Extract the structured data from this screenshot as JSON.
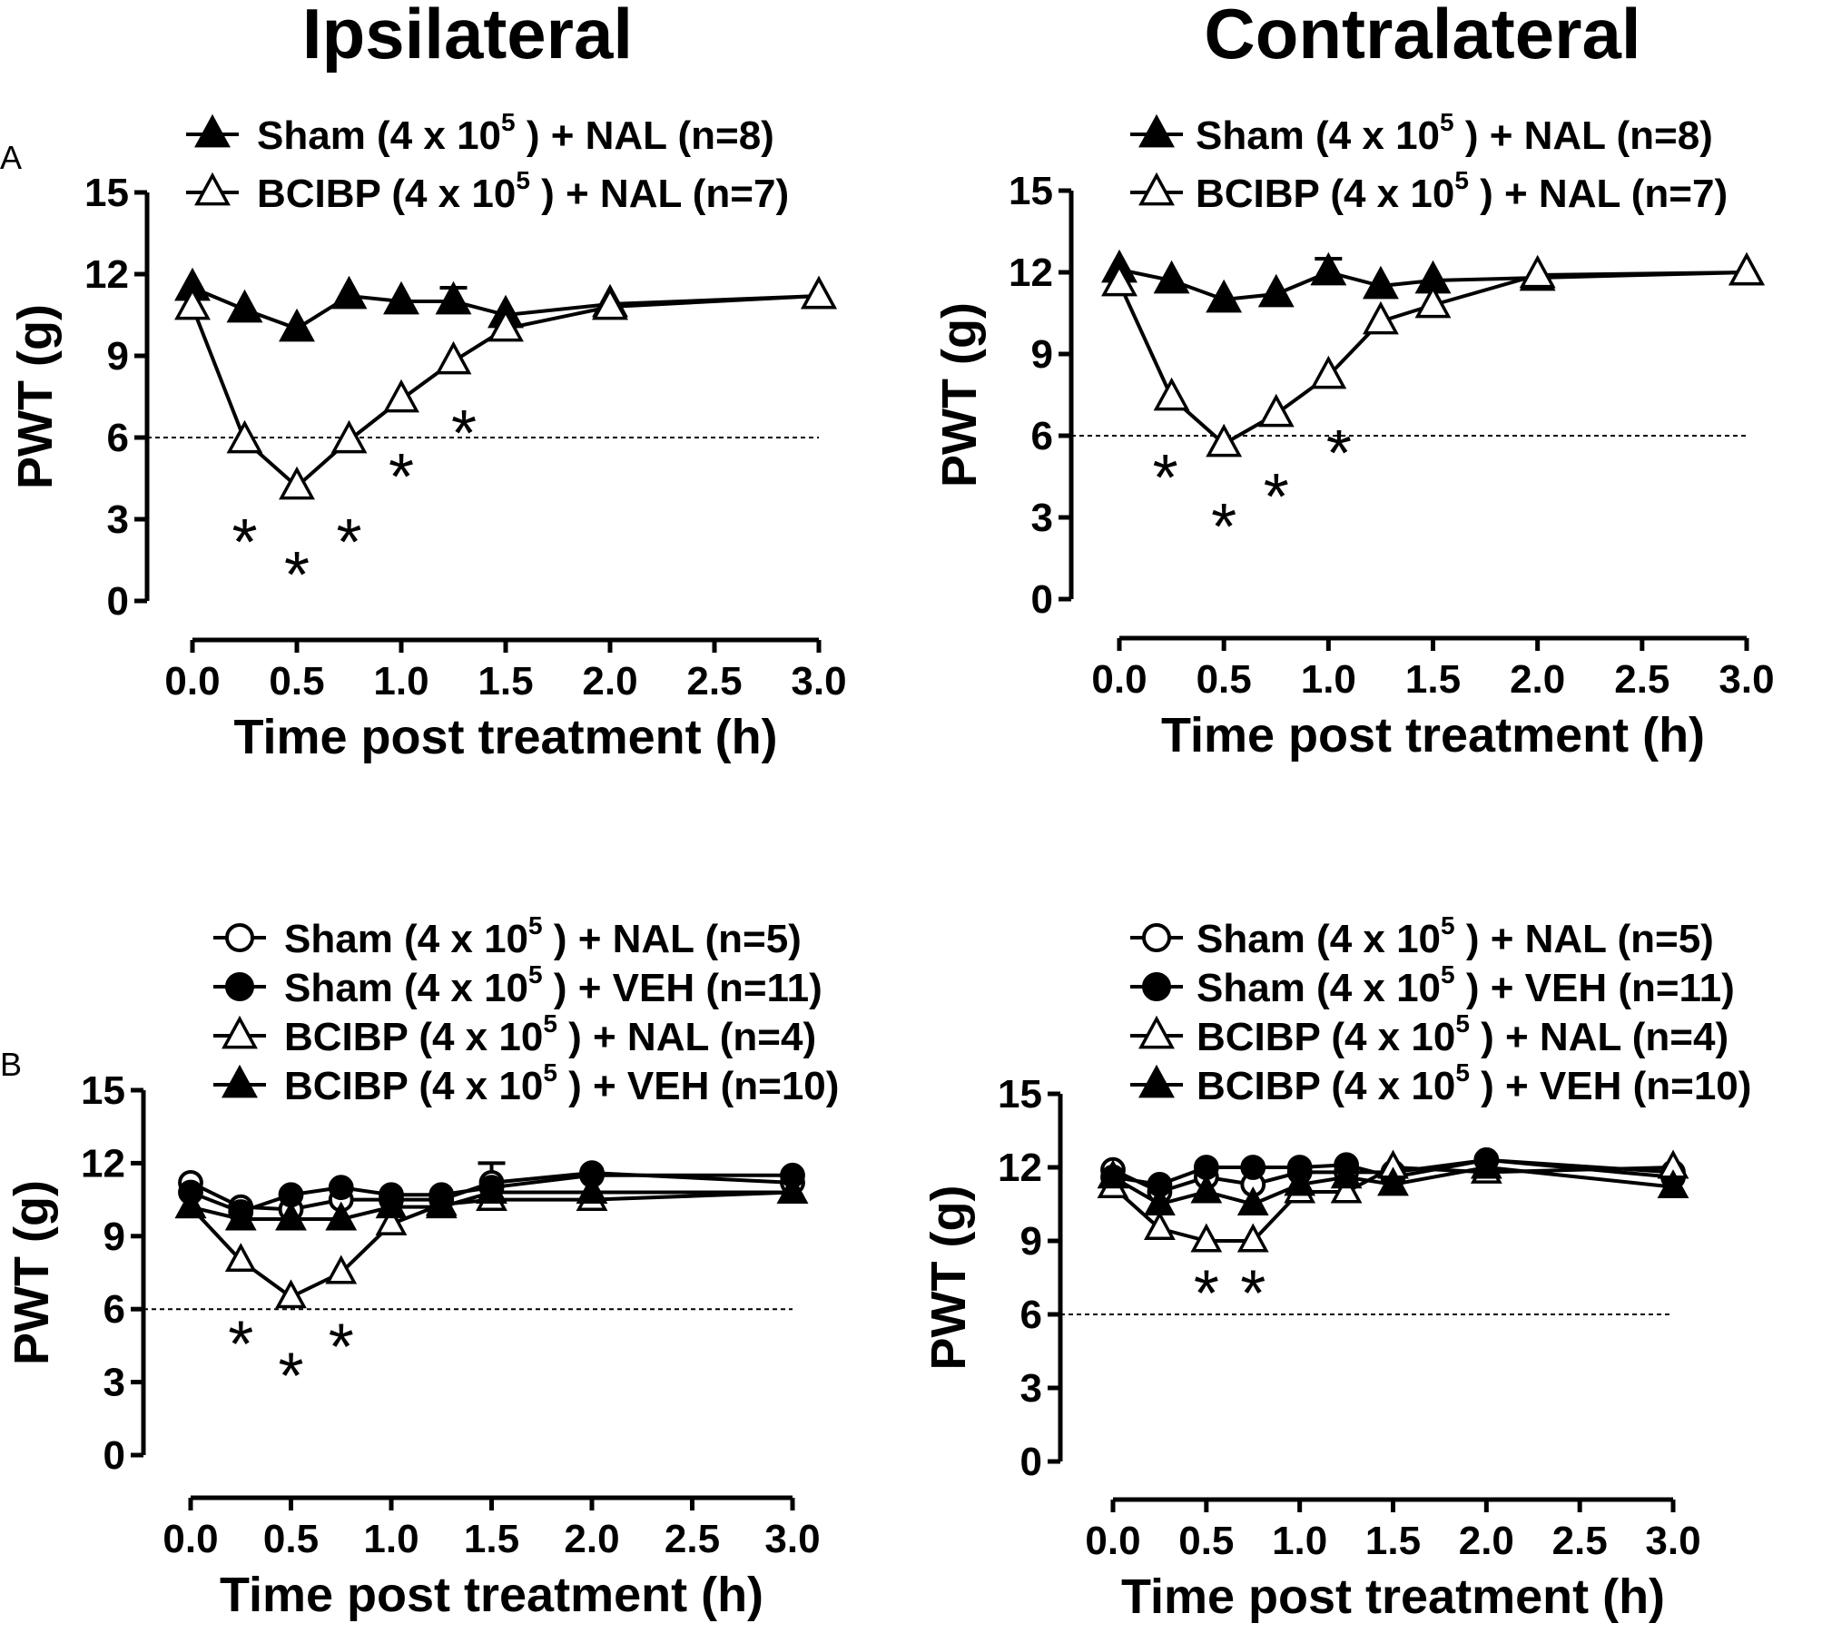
{
  "figure": {
    "column_titles": [
      "Ipsilateral",
      "Contralateral"
    ],
    "panel_letters": [
      "A",
      "B"
    ]
  },
  "chart_data": [
    {
      "id": "A-ipsi",
      "panel": "A",
      "column": "Ipsilateral",
      "type": "line",
      "xlabel": "Time post treatment (h)",
      "ylabel": "PWT (g)",
      "xlim": [
        0,
        3
      ],
      "ylim": [
        0,
        15
      ],
      "xticks": [
        "0.0",
        "0.5",
        "1.0",
        "1.5",
        "2.0",
        "2.5",
        "3.0"
      ],
      "yticks": [
        "0",
        "3",
        "6",
        "9",
        "12",
        "15"
      ],
      "reference_line_y": 6,
      "series": [
        {
          "name": "Sham (4 x 10 5 ) + NAL (n=8)",
          "legend_pre": "Sham (4 x 10",
          "legend_exp": "5",
          "legend_post": ") + NAL (n=8)",
          "marker": "triangle",
          "fill": "filled",
          "x": [
            0,
            0.25,
            0.5,
            0.75,
            1.0,
            1.25,
            1.5,
            2.0,
            3.0
          ],
          "y": [
            11.5,
            10.7,
            10.0,
            11.2,
            11.0,
            11.0,
            10.5,
            10.9,
            11.2
          ],
          "err": [
            0,
            0,
            0,
            0,
            0,
            0.5,
            0,
            0,
            0
          ]
        },
        {
          "name": "BCIBP (4 x 10 5 ) + NAL (n=7)",
          "legend_pre": "BCIBP (4 x 10",
          "legend_exp": "5",
          "legend_post": ") + NAL (n=7)",
          "marker": "triangle",
          "fill": "open",
          "x": [
            0,
            0.25,
            0.5,
            0.75,
            1.0,
            1.25,
            1.5,
            2.0,
            3.0
          ],
          "y": [
            10.8,
            5.9,
            4.2,
            5.9,
            7.4,
            8.8,
            10.0,
            10.8,
            11.2
          ],
          "err": [
            0,
            0,
            0,
            0,
            0,
            0,
            0,
            0,
            0
          ]
        }
      ],
      "significance": [
        {
          "x": 0.25,
          "y": 2.2,
          "label": "*"
        },
        {
          "x": 0.5,
          "y": 1.0,
          "label": "*"
        },
        {
          "x": 0.75,
          "y": 2.2,
          "label": "*"
        },
        {
          "x": 1.0,
          "y": 4.6,
          "label": "*"
        },
        {
          "x": 1.3,
          "y": 6.2,
          "label": "*"
        }
      ]
    },
    {
      "id": "A-contra",
      "panel": "A",
      "column": "Contralateral",
      "type": "line",
      "xlabel": "Time post treatment (h)",
      "ylabel": "PWT (g)",
      "xlim": [
        0,
        3
      ],
      "ylim": [
        0,
        15
      ],
      "xticks": [
        "0.0",
        "0.5",
        "1.0",
        "1.5",
        "2.0",
        "2.5",
        "3.0"
      ],
      "yticks": [
        "0",
        "3",
        "6",
        "9",
        "12",
        "15"
      ],
      "reference_line_y": 6,
      "series": [
        {
          "name": "Sham (4 x 10 5 ) + NAL (n=8)",
          "legend_pre": "Sham (4 x 10",
          "legend_exp": "5",
          "legend_post": ") + NAL (n=8)",
          "marker": "triangle",
          "fill": "filled",
          "x": [
            0,
            0.25,
            0.5,
            0.75,
            1.0,
            1.25,
            1.5,
            2.0,
            3.0
          ],
          "y": [
            12.1,
            11.7,
            11.0,
            11.2,
            12.0,
            11.5,
            11.7,
            11.8,
            12.0
          ],
          "err": [
            0,
            0,
            0,
            0,
            0.5,
            0,
            0,
            0,
            0
          ]
        },
        {
          "name": "BCIBP (4 x 10 5 ) + NAL (n=7)",
          "legend_pre": "BCIBP (4 x 10",
          "legend_exp": "5",
          "legend_post": ") + NAL (n=7)",
          "marker": "triangle",
          "fill": "open",
          "x": [
            0,
            0.25,
            0.5,
            0.75,
            1.0,
            1.25,
            1.5,
            2.0,
            3.0
          ],
          "y": [
            11.6,
            7.4,
            5.7,
            6.8,
            8.2,
            10.2,
            10.8,
            11.9,
            12.0
          ],
          "err": [
            0,
            0,
            0,
            0,
            0,
            0,
            0,
            0,
            0
          ]
        }
      ],
      "significance": [
        {
          "x": 0.22,
          "y": 4.5,
          "label": "*"
        },
        {
          "x": 0.5,
          "y": 2.7,
          "label": "*"
        },
        {
          "x": 0.75,
          "y": 3.8,
          "label": "*"
        },
        {
          "x": 1.05,
          "y": 5.4,
          "label": "*"
        }
      ]
    },
    {
      "id": "B-ipsi",
      "panel": "B",
      "column": "Ipsilateral",
      "type": "line",
      "xlabel": "Time post treatment (h)",
      "ylabel": "PWT (g)",
      "xlim": [
        0,
        3
      ],
      "ylim": [
        0,
        15
      ],
      "xticks": [
        "0.0",
        "0.5",
        "1.0",
        "1.5",
        "2.0",
        "2.5",
        "3.0"
      ],
      "yticks": [
        "0",
        "3",
        "6",
        "9",
        "12",
        "15"
      ],
      "reference_line_y": 6,
      "series": [
        {
          "name": "Sham (4 x 10 5 ) + NAL (n=5)",
          "legend_pre": "Sham (4 x 10",
          "legend_exp": "5",
          "legend_post": ") + NAL (n=5)",
          "marker": "circle",
          "fill": "open",
          "x": [
            0,
            0.25,
            0.5,
            0.75,
            1.0,
            1.25,
            1.5,
            2.0,
            3.0
          ],
          "y": [
            11.2,
            10.2,
            10.1,
            10.5,
            10.5,
            10.5,
            11.2,
            11.6,
            11.2
          ],
          "err": [
            0,
            0,
            0,
            0,
            0,
            0,
            0.8,
            0,
            0
          ]
        },
        {
          "name": "Sham (4 x 10 5 ) + VEH (n=11)",
          "legend_pre": "Sham (4 x 10",
          "legend_exp": "5",
          "legend_post": ") + VEH (n=11)",
          "marker": "circle",
          "fill": "filled",
          "x": [
            0,
            0.25,
            0.5,
            0.75,
            1.0,
            1.25,
            1.5,
            2.0,
            3.0
          ],
          "y": [
            10.8,
            10.0,
            10.7,
            11.0,
            10.7,
            10.7,
            11.0,
            11.5,
            11.5
          ],
          "err": [
            0,
            0,
            0,
            0,
            0,
            0,
            0,
            0,
            0
          ]
        },
        {
          "name": "BCIBP (4 x 10 5 ) + NAL (n=4)",
          "legend_pre": "BCIBP (4 x 10",
          "legend_exp": "5",
          "legend_post": ") + NAL (n=4)",
          "marker": "triangle",
          "fill": "open",
          "x": [
            0,
            0.25,
            0.5,
            0.75,
            1.0,
            1.25,
            1.5,
            2.0,
            3.0
          ],
          "y": [
            10.2,
            8.0,
            6.5,
            7.5,
            9.5,
            10.3,
            10.5,
            10.5,
            10.8
          ],
          "err": [
            0,
            0,
            0,
            0,
            0,
            0,
            0,
            0,
            0
          ]
        },
        {
          "name": "BCIBP (4 x 10 5 ) + VEH (n=10)",
          "legend_pre": "BCIBP (4 x 10",
          "legend_exp": "5",
          "legend_post": ") + VEH (n=10)",
          "marker": "triangle",
          "fill": "filled",
          "x": [
            0,
            0.25,
            0.5,
            0.75,
            1.0,
            1.25,
            1.5,
            2.0,
            3.0
          ],
          "y": [
            10.2,
            9.7,
            9.7,
            9.7,
            10.2,
            10.2,
            10.8,
            10.8,
            10.8
          ],
          "err": [
            0,
            0,
            0,
            0,
            0,
            0,
            0,
            0,
            0
          ]
        }
      ],
      "significance": [
        {
          "x": 0.25,
          "y": 4.6,
          "label": "*"
        },
        {
          "x": 0.5,
          "y": 3.3,
          "label": "*"
        },
        {
          "x": 0.75,
          "y": 4.5,
          "label": "*"
        }
      ]
    },
    {
      "id": "B-contra",
      "panel": "B",
      "column": "Contralateral",
      "type": "line",
      "xlabel": "Time post treatment (h)",
      "ylabel": "PWT (g)",
      "xlim": [
        0,
        3
      ],
      "ylim": [
        0,
        15
      ],
      "xticks": [
        "0.0",
        "0.5",
        "1.0",
        "1.5",
        "2.0",
        "2.5",
        "3.0"
      ],
      "yticks": [
        "0",
        "3",
        "6",
        "9",
        "12",
        "15"
      ],
      "reference_line_y": 6,
      "series": [
        {
          "name": "Sham (4 x 10 5) + NAL (n=5)",
          "legend_pre": "Sham (4 x 10",
          "legend_exp": "5",
          "legend_post": ") + NAL (n=5)",
          "marker": "circle",
          "fill": "open",
          "x": [
            0,
            0.25,
            0.5,
            0.75,
            1.0,
            1.25,
            1.5,
            2.0,
            3.0
          ],
          "y": [
            11.9,
            11.0,
            11.6,
            11.3,
            11.8,
            11.8,
            11.8,
            12.3,
            11.8
          ],
          "err": [
            0,
            0,
            0,
            0,
            0,
            0,
            0,
            0,
            0
          ]
        },
        {
          "name": "Sham (4 x 10 5) + VEH (n=11)",
          "legend_pre": "Sham (4 x 10",
          "legend_exp": "5",
          "legend_post": ") + VEH (n=11)",
          "marker": "circle",
          "fill": "filled",
          "x": [
            0,
            0.25,
            0.5,
            0.75,
            1.0,
            1.25,
            1.5,
            2.0,
            3.0
          ],
          "y": [
            11.6,
            11.3,
            12.0,
            12.0,
            12.0,
            12.1,
            11.6,
            12.3,
            11.6
          ],
          "err": [
            0,
            0,
            0,
            0,
            0,
            0,
            0,
            0,
            0
          ]
        },
        {
          "name": "BCIBP (4 x 10 5 ) + NAL (n=4)",
          "legend_pre": "BCIBP (4 x 10",
          "legend_exp": "5",
          "legend_post": ") + NAL (n=4)",
          "marker": "triangle",
          "fill": "open",
          "x": [
            0,
            0.25,
            0.5,
            0.75,
            1.0,
            1.25,
            1.5,
            2.0,
            3.0
          ],
          "y": [
            11.2,
            9.5,
            9.0,
            9.0,
            11.0,
            11.0,
            12.0,
            11.8,
            12.0
          ],
          "err": [
            0,
            0,
            0,
            0,
            0,
            0,
            0,
            0,
            0
          ]
        },
        {
          "name": "BCIBP (4 x 10 5 ) + VEH (n=10)",
          "legend_pre": "BCIBP (4 x 10",
          "legend_exp": "5",
          "legend_post": ") + VEH (n=10)",
          "marker": "triangle",
          "fill": "filled",
          "x": [
            0,
            0.25,
            0.5,
            0.75,
            1.0,
            1.25,
            1.5,
            2.0,
            3.0
          ],
          "y": [
            11.6,
            10.5,
            11.0,
            10.5,
            11.3,
            11.6,
            11.3,
            12.0,
            11.2
          ],
          "err": [
            0,
            0,
            0,
            0,
            0,
            0,
            0,
            0,
            0
          ]
        }
      ],
      "significance": [
        {
          "x": 0.5,
          "y": 6.9,
          "label": "*"
        },
        {
          "x": 0.75,
          "y": 6.9,
          "label": "*"
        }
      ]
    }
  ]
}
